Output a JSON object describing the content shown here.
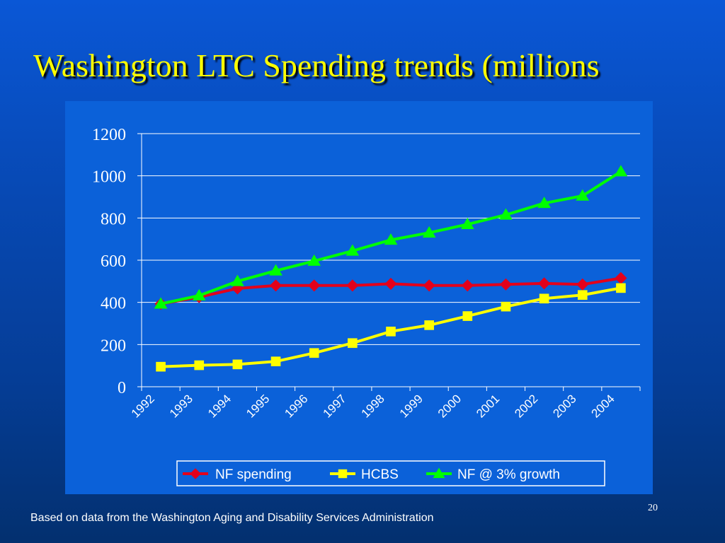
{
  "slide": {
    "title": "Washington LTC Spending trends (millions",
    "footnote": "Based on data from the Washington Aging and Disability Services Administration",
    "number": "20"
  },
  "colors": {
    "background": "#0a57d6",
    "title": "#ffff00",
    "plot_area": "#0b61d9",
    "axis": "#ffffff"
  },
  "chart_data": {
    "type": "line",
    "title": "",
    "xlabel": "",
    "ylabel": "",
    "x": [
      "1992",
      "1993",
      "1994",
      "1995",
      "1996",
      "1997",
      "1998",
      "1999",
      "2000",
      "2001",
      "2002",
      "2003",
      "2004"
    ],
    "ylim": [
      0,
      1200
    ],
    "yticks": [
      0,
      200,
      400,
      600,
      800,
      1000,
      1200
    ],
    "grid": true,
    "legend_position": "bottom",
    "series": [
      {
        "name": "NF spending",
        "color": "#e3001b",
        "marker": "diamond",
        "values": [
          393,
          425,
          466,
          480,
          480,
          480,
          488,
          480,
          480,
          485,
          490,
          485,
          515
        ]
      },
      {
        "name": "HCBS",
        "color": "#ffff00",
        "marker": "square",
        "values": [
          95,
          102,
          106,
          120,
          160,
          207,
          262,
          292,
          335,
          380,
          418,
          435,
          468
        ]
      },
      {
        "name": "NF @ 3% growth",
        "color": "#00ff00",
        "marker": "triangle",
        "values": [
          393,
          432,
          500,
          550,
          596,
          644,
          696,
          730,
          770,
          815,
          870,
          905,
          1020
        ]
      }
    ]
  }
}
